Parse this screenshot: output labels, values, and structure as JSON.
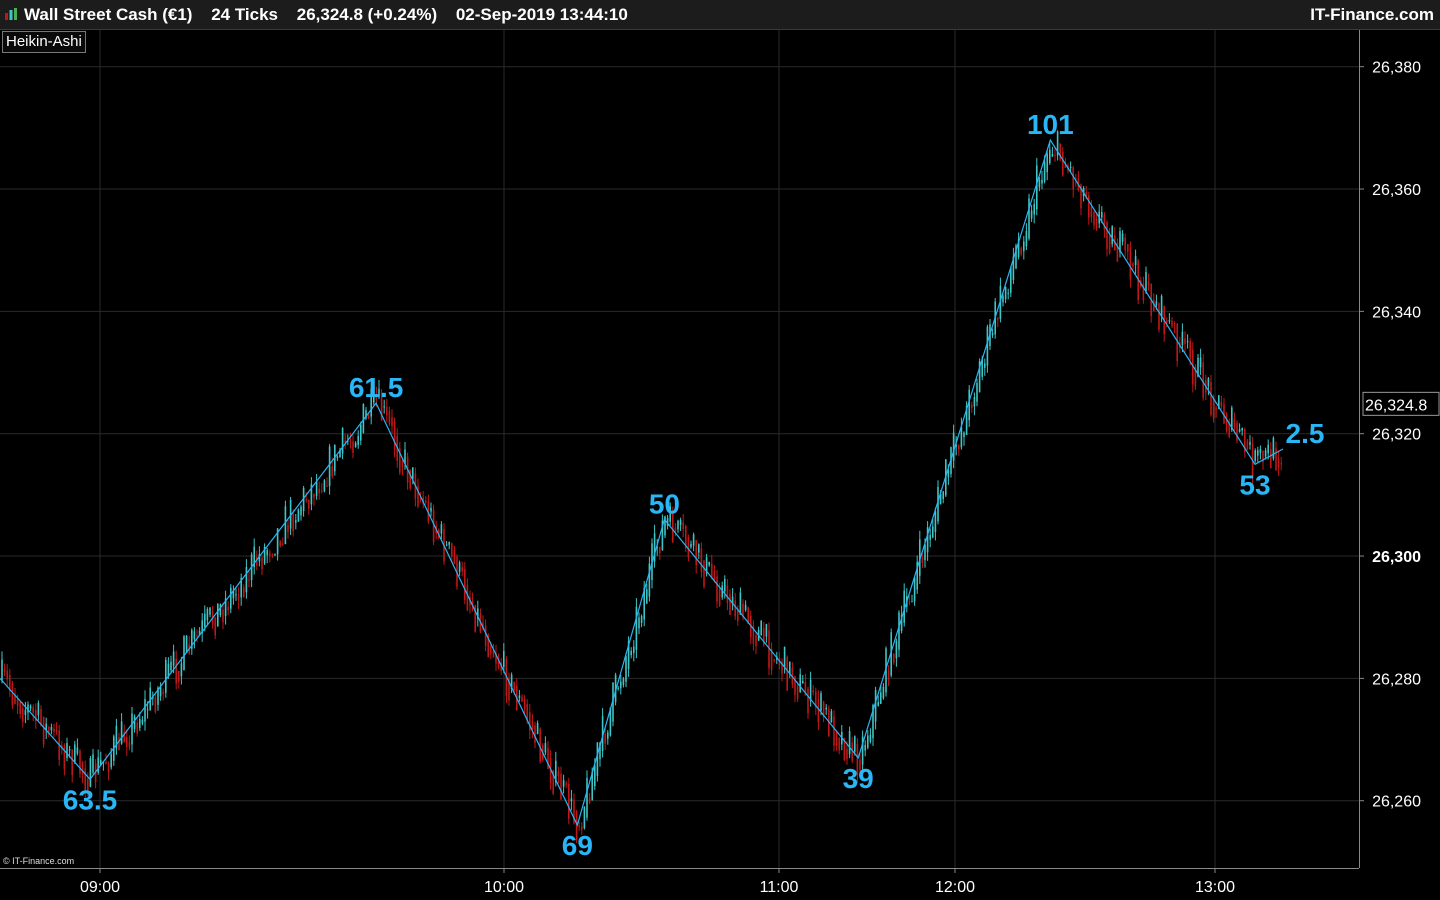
{
  "header": {
    "instrument": "Wall Street Cash (€1)",
    "timeframe": "24 Ticks",
    "price_change": "26,324.8 (+0.24%)",
    "datetime": "02-Sep-2019 13:44:10",
    "brand": "IT-Finance.com"
  },
  "indicator_label": "Heikin-Ashi",
  "copyright": "© IT-Finance.com",
  "colors": {
    "background": "#000000",
    "up_candle": "#3ec6c6",
    "down_candle": "#c01818",
    "zigzag": "#29b6f6",
    "annotation": "#29b6f6",
    "grid": "#2a2a2a"
  },
  "chart_data": {
    "type": "line",
    "style": "heikin-ashi candlesticks with zigzag overlay",
    "x_axis": {
      "tick_labels": [
        "09:00",
        "10:00",
        "11:00",
        "12:00",
        "13:00"
      ]
    },
    "y_axis": {
      "tick_labels": [
        "26,380",
        "26,360",
        "26,340",
        "26,320",
        "26,300",
        "26,280",
        "26,260"
      ],
      "tick_values": [
        26380,
        26360,
        26340,
        26320,
        26300,
        26280,
        26260
      ],
      "ylim": [
        26249,
        26386
      ],
      "side": "right",
      "current_price_label": "26,324.8",
      "current_price": 26324.8
    },
    "grid": true,
    "zigzag": {
      "points": [
        {
          "time": "08:50",
          "value": 26280
        },
        {
          "time": "08:59",
          "value": 26263.5,
          "label": "63.5"
        },
        {
          "time": "09:41",
          "value": 26325,
          "label": "61.5"
        },
        {
          "time": "10:16",
          "value": 26256,
          "label": "69"
        },
        {
          "time": "10:35",
          "value": 26306,
          "label": "50"
        },
        {
          "time": "11:27",
          "value": 26267,
          "label": "39"
        },
        {
          "time": "12:22",
          "value": 26368,
          "label": "101"
        },
        {
          "time": "13:10",
          "value": 26315,
          "label": "53"
        },
        {
          "time": "13:17",
          "value": 26317.5,
          "label": "2.5"
        }
      ]
    }
  }
}
